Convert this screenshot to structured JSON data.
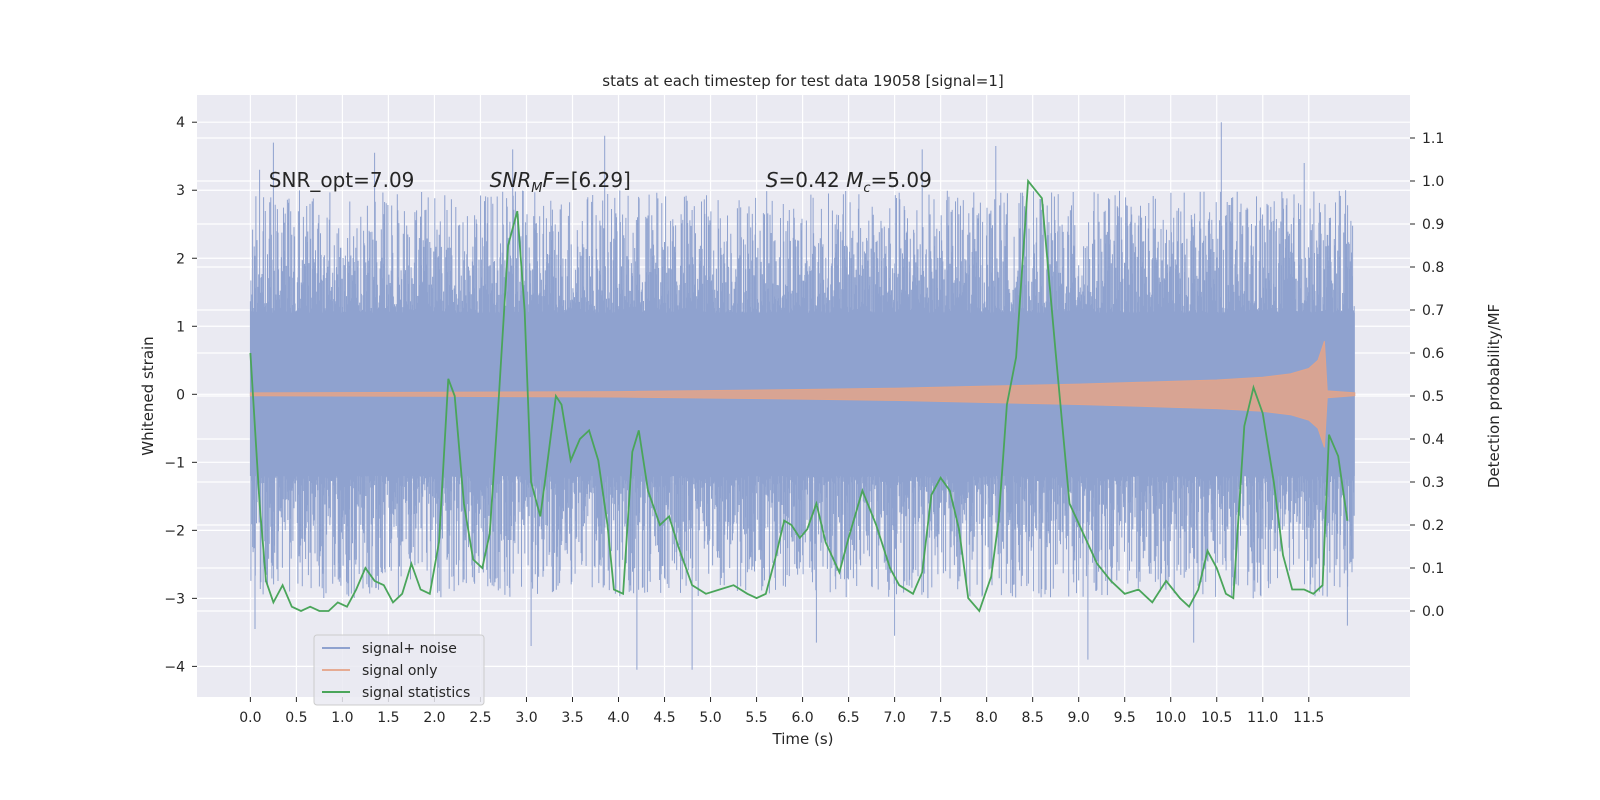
{
  "chart_data": {
    "type": "line",
    "title": "stats at each timestep for test data 19058 [signal=1]",
    "xlabel": "Time (s)",
    "ylabel_left": "Whitened strain",
    "ylabel_right": "Detection probability/MF",
    "xlim": [
      -0.58,
      12.6
    ],
    "ylim_left": [
      -4.45,
      4.4
    ],
    "ylim_right": [
      -0.2,
      1.2
    ],
    "grid": true,
    "x_ticks": [
      0.0,
      0.5,
      1.0,
      1.5,
      2.0,
      2.5,
      3.0,
      3.5,
      4.0,
      4.5,
      5.0,
      5.5,
      6.0,
      6.5,
      7.0,
      7.5,
      8.0,
      8.5,
      9.0,
      9.5,
      10.0,
      10.5,
      11.0,
      11.5
    ],
    "x_tick_labels": [
      "0.0",
      "0.5",
      "1.0",
      "1.5",
      "2.0",
      "2.5",
      "3.0",
      "3.5",
      "4.0",
      "4.5",
      "5.0",
      "5.5",
      "6.0",
      "6.5",
      "7.0",
      "7.5",
      "8.0",
      "8.5",
      "9.0",
      "9.5",
      "10.0",
      "10.5",
      "11.0",
      "11.5"
    ],
    "y_left_ticks": [
      -4,
      -3,
      -2,
      -1,
      0,
      1,
      2,
      3,
      4
    ],
    "y_left_tick_labels": [
      "−4",
      "−3",
      "−2",
      "−1",
      "0",
      "1",
      "2",
      "3",
      "4"
    ],
    "y_right_ticks": [
      0.0,
      0.1,
      0.2,
      0.3,
      0.4,
      0.5,
      0.6,
      0.7,
      0.8,
      0.9,
      1.0,
      1.1
    ],
    "y_right_tick_labels": [
      "0.0",
      "0.1",
      "0.2",
      "0.3",
      "0.4",
      "0.5",
      "0.6",
      "0.7",
      "0.8",
      "0.9",
      "1.0",
      "1.1"
    ],
    "annotations": [
      {
        "text": "SNR_opt=7.09",
        "x": 0.2,
        "y": 3.15
      },
      {
        "html": "<tspan font-style='italic'>SNR</tspan><tspan font-style='italic' font-size='13' dy='5'>M</tspan><tspan font-style='italic' dy='-5'>F</tspan>=[6.29]",
        "x": 2.6,
        "y": 3.15
      },
      {
        "html": "<tspan font-style='italic'>S</tspan>=0.42   <tspan font-style='italic'>M</tspan><tspan font-style='italic' font-size='13' dy='5'>c</tspan><tspan dy='-5'>=5.09</tspan>",
        "x": 5.6,
        "y": 3.15
      }
    ],
    "legend": {
      "position": "lower-left",
      "entries": [
        {
          "label": "signal+ noise",
          "color": "#8fa2cf"
        },
        {
          "label": "signal only",
          "color": "#e6ab93"
        },
        {
          "label": "signal statistics",
          "color": "#4aa55a"
        }
      ]
    },
    "series": [
      {
        "name": "signal+ noise",
        "axis": "left",
        "kind": "noise-band",
        "color": "#8fa2cf",
        "x_range": [
          0.0,
          12.0
        ],
        "core_band": [
          -1.2,
          1.2
        ],
        "typical_peak": 2.4,
        "max": 4.0,
        "min": -4.05
      },
      {
        "name": "signal only",
        "axis": "left",
        "kind": "envelope",
        "color": "#e0a48c",
        "x": [
          0.0,
          2.0,
          4.0,
          6.0,
          7.0,
          8.0,
          9.0,
          10.0,
          10.5,
          11.0,
          11.3,
          11.5,
          11.6,
          11.65,
          11.67,
          11.7,
          12.0
        ],
        "amplitude": [
          0.02,
          0.03,
          0.04,
          0.07,
          0.09,
          0.12,
          0.15,
          0.19,
          0.21,
          0.25,
          0.3,
          0.38,
          0.5,
          0.7,
          0.78,
          0.05,
          0.02
        ]
      },
      {
        "name": "signal statistics",
        "axis": "right",
        "kind": "line",
        "color": "#4aa55a",
        "x": [
          0.0,
          0.1,
          0.17,
          0.25,
          0.35,
          0.45,
          0.55,
          0.65,
          0.75,
          0.85,
          0.95,
          1.05,
          1.15,
          1.25,
          1.35,
          1.45,
          1.55,
          1.65,
          1.75,
          1.85,
          1.95,
          2.05,
          2.15,
          2.22,
          2.32,
          2.42,
          2.52,
          2.6,
          2.7,
          2.8,
          2.9,
          2.98,
          3.05,
          3.15,
          3.2,
          3.32,
          3.38,
          3.48,
          3.58,
          3.68,
          3.78,
          3.88,
          3.95,
          4.05,
          4.15,
          4.22,
          4.32,
          4.45,
          4.55,
          4.65,
          4.8,
          4.95,
          5.1,
          5.25,
          5.4,
          5.5,
          5.6,
          5.7,
          5.8,
          5.88,
          5.97,
          6.05,
          6.15,
          6.25,
          6.4,
          6.5,
          6.65,
          6.8,
          6.95,
          7.05,
          7.2,
          7.3,
          7.4,
          7.5,
          7.6,
          7.7,
          7.8,
          7.92,
          8.05,
          8.13,
          8.22,
          8.32,
          8.45,
          8.6,
          8.75,
          8.9,
          9.05,
          9.2,
          9.35,
          9.5,
          9.65,
          9.8,
          9.95,
          10.1,
          10.2,
          10.3,
          10.4,
          10.5,
          10.6,
          10.68,
          10.8,
          10.9,
          11.0,
          11.12,
          11.22,
          11.32,
          11.45,
          11.55,
          11.65,
          11.72,
          11.82,
          11.92
        ],
        "y": [
          0.6,
          0.25,
          0.07,
          0.02,
          0.06,
          0.01,
          0.0,
          0.01,
          0.0,
          0.0,
          0.02,
          0.01,
          0.05,
          0.1,
          0.07,
          0.06,
          0.02,
          0.04,
          0.11,
          0.05,
          0.04,
          0.16,
          0.54,
          0.5,
          0.25,
          0.12,
          0.1,
          0.18,
          0.5,
          0.85,
          0.93,
          0.7,
          0.3,
          0.22,
          0.3,
          0.5,
          0.48,
          0.35,
          0.4,
          0.42,
          0.35,
          0.2,
          0.05,
          0.04,
          0.37,
          0.42,
          0.28,
          0.2,
          0.22,
          0.15,
          0.06,
          0.04,
          0.05,
          0.06,
          0.04,
          0.03,
          0.04,
          0.12,
          0.21,
          0.2,
          0.17,
          0.19,
          0.25,
          0.16,
          0.09,
          0.17,
          0.28,
          0.2,
          0.1,
          0.06,
          0.04,
          0.09,
          0.27,
          0.31,
          0.28,
          0.19,
          0.03,
          0.0,
          0.08,
          0.21,
          0.48,
          0.59,
          1.0,
          0.96,
          0.6,
          0.25,
          0.18,
          0.11,
          0.07,
          0.04,
          0.05,
          0.02,
          0.07,
          0.03,
          0.01,
          0.05,
          0.14,
          0.1,
          0.04,
          0.03,
          0.43,
          0.52,
          0.46,
          0.3,
          0.13,
          0.05,
          0.05,
          0.04,
          0.06,
          0.41,
          0.36,
          0.21
        ]
      }
    ]
  }
}
